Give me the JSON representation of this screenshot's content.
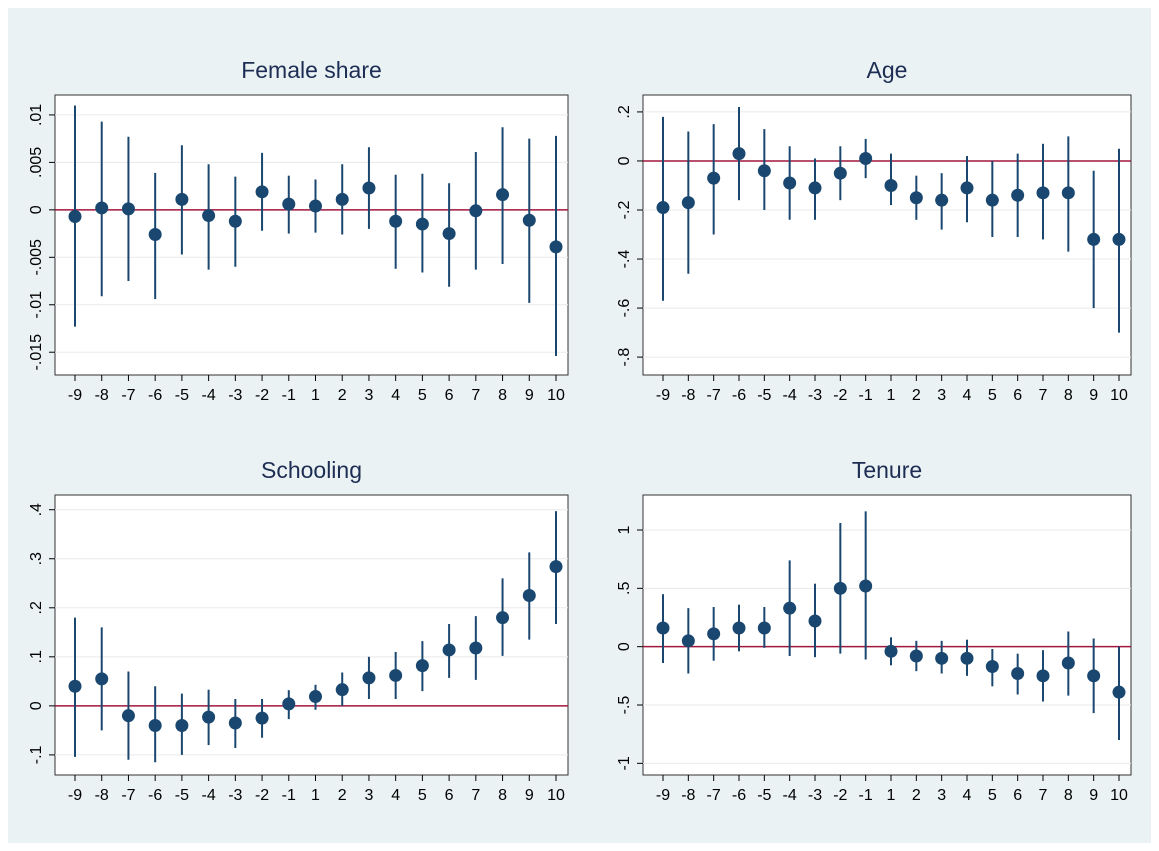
{
  "chart_data": [
    {
      "type": "errorbar",
      "title": "Female share",
      "categories": [
        "-9",
        "-8",
        "-7",
        "-6",
        "-5",
        "-4",
        "-3",
        "-2",
        "-1",
        "1",
        "2",
        "3",
        "4",
        "5",
        "6",
        "7",
        "8",
        "9",
        "10"
      ],
      "values": [
        -0.0007,
        0.0002,
        0.0001,
        -0.0026,
        0.0011,
        -0.0006,
        -0.0012,
        0.0019,
        0.0006,
        0.0004,
        0.0011,
        0.0023,
        -0.0012,
        -0.0015,
        -0.0025,
        -0.0001,
        0.0016,
        -0.0011,
        -0.0039
      ],
      "lower": [
        -0.0123,
        -0.0091,
        -0.0075,
        -0.0094,
        -0.0047,
        -0.0063,
        -0.006,
        -0.0022,
        -0.0025,
        -0.0024,
        -0.0026,
        -0.002,
        -0.0062,
        -0.0066,
        -0.0081,
        -0.0063,
        -0.0057,
        -0.0098,
        -0.0154
      ],
      "upper": [
        0.011,
        0.0093,
        0.0077,
        0.0039,
        0.0068,
        0.0048,
        0.0035,
        0.006,
        0.0036,
        0.0032,
        0.0048,
        0.0066,
        0.0037,
        0.0038,
        0.0028,
        0.0061,
        0.0087,
        0.0075,
        0.0078
      ],
      "color": "#1a476f",
      "ylim": [
        -0.0174,
        0.0121
      ],
      "yticks": [
        {
          "value": -0.015,
          "label": "-.015"
        },
        {
          "value": -0.01,
          "label": "-.01"
        },
        {
          "value": -0.005,
          "label": "-.005"
        },
        0,
        {
          "value": 0.005,
          "label": ".005"
        },
        {
          "value": 0.01,
          "label": ".01"
        }
      ],
      "grid": true,
      "yline": 0,
      "yline_color": "#a0163e"
    },
    {
      "type": "errorbar",
      "title": "Age",
      "categories": [
        "-9",
        "-8",
        "-7",
        "-6",
        "-5",
        "-4",
        "-3",
        "-2",
        "-1",
        "1",
        "2",
        "3",
        "4",
        "5",
        "6",
        "7",
        "8",
        "9",
        "10"
      ],
      "values": [
        -0.19,
        -0.17,
        -0.07,
        0.03,
        -0.04,
        -0.09,
        -0.11,
        -0.05,
        0.01,
        -0.1,
        -0.15,
        -0.16,
        -0.11,
        -0.16,
        -0.14,
        -0.13,
        -0.13,
        -0.32,
        -0.32
      ],
      "lower": [
        -0.57,
        -0.46,
        -0.3,
        -0.16,
        -0.2,
        -0.24,
        -0.24,
        -0.16,
        -0.07,
        -0.18,
        -0.24,
        -0.28,
        -0.25,
        -0.31,
        -0.31,
        -0.32,
        -0.37,
        -0.6,
        -0.7
      ],
      "upper": [
        0.18,
        0.12,
        0.15,
        0.22,
        0.13,
        0.06,
        0.01,
        0.06,
        0.09,
        0.03,
        -0.06,
        -0.05,
        0.02,
        0,
        0.03,
        0.07,
        0.1,
        -0.04,
        0.05
      ],
      "color": "#1a476f",
      "ylim": [
        -0.873,
        0.269
      ],
      "yticks": [
        {
          "value": -0.8,
          "label": "-.8"
        },
        {
          "value": -0.6,
          "label": "-.6"
        },
        {
          "value": -0.4,
          "label": "-.4"
        },
        {
          "value": -0.2,
          "label": "-.2"
        },
        0,
        {
          "value": 0.2,
          "label": ".2"
        }
      ],
      "grid": true,
      "yline": 0,
      "yline_color": "#a0163e"
    },
    {
      "type": "errorbar",
      "title": "Schooling",
      "categories": [
        "-9",
        "-8",
        "-7",
        "-6",
        "-5",
        "-4",
        "-3",
        "-2",
        "-1",
        "1",
        "2",
        "3",
        "4",
        "5",
        "6",
        "7",
        "8",
        "9",
        "10"
      ],
      "values": [
        0.04,
        0.055,
        -0.02,
        -0.04,
        -0.04,
        -0.023,
        -0.035,
        -0.025,
        0.004,
        0.019,
        0.033,
        0.057,
        0.062,
        0.082,
        0.114,
        0.118,
        0.18,
        0.225,
        0.284
      ],
      "lower": [
        -0.104,
        -0.05,
        -0.11,
        -0.115,
        -0.1,
        -0.08,
        -0.086,
        -0.065,
        -0.027,
        -0.008,
        0,
        0.014,
        0.014,
        0.03,
        0.057,
        0.053,
        0.102,
        0.135,
        0.167
      ],
      "upper": [
        0.18,
        0.16,
        0.07,
        0.04,
        0.025,
        0.033,
        0.014,
        0.014,
        0.032,
        0.043,
        0.068,
        0.1,
        0.11,
        0.132,
        0.167,
        0.183,
        0.26,
        0.313,
        0.397
      ],
      "color": "#1a476f",
      "ylim": [
        -0.141,
        0.43
      ],
      "yticks": [
        {
          "value": -0.1,
          "label": "-.1"
        },
        0,
        {
          "value": 0.1,
          "label": ".1"
        },
        {
          "value": 0.2,
          "label": ".2"
        },
        {
          "value": 0.3,
          "label": ".3"
        },
        {
          "value": 0.4,
          "label": ".4"
        }
      ],
      "grid": true,
      "yline": 0,
      "yline_color": "#a0163e"
    },
    {
      "type": "errorbar",
      "title": "Tenure",
      "categories": [
        "-9",
        "-8",
        "-7",
        "-6",
        "-5",
        "-4",
        "-3",
        "-2",
        "-1",
        "1",
        "2",
        "3",
        "4",
        "5",
        "6",
        "7",
        "8",
        "9",
        "10"
      ],
      "values": [
        0.16,
        0.05,
        0.11,
        0.16,
        0.16,
        0.33,
        0.22,
        0.5,
        0.52,
        -0.04,
        -0.08,
        -0.1,
        -0.1,
        -0.17,
        -0.23,
        -0.25,
        -0.14,
        -0.25,
        -0.39
      ],
      "lower": [
        -0.14,
        -0.23,
        -0.12,
        -0.04,
        -0.01,
        -0.08,
        -0.09,
        -0.06,
        -0.11,
        -0.16,
        -0.21,
        -0.23,
        -0.25,
        -0.34,
        -0.41,
        -0.47,
        -0.42,
        -0.57,
        -0.8
      ],
      "upper": [
        0.45,
        0.33,
        0.34,
        0.36,
        0.34,
        0.74,
        0.54,
        1.06,
        1.16,
        0.08,
        0.05,
        0.05,
        0.06,
        -0.02,
        -0.06,
        -0.03,
        0.13,
        0.07,
        0
      ],
      "color": "#1a476f",
      "ylim": [
        -1.1,
        1.3
      ],
      "yticks": [
        -1,
        {
          "value": -0.5,
          "label": "-.5"
        },
        0,
        {
          "value": 0.5,
          "label": ".5"
        },
        1
      ],
      "grid": true,
      "yline": 0,
      "yline_color": "#a0163e"
    }
  ]
}
